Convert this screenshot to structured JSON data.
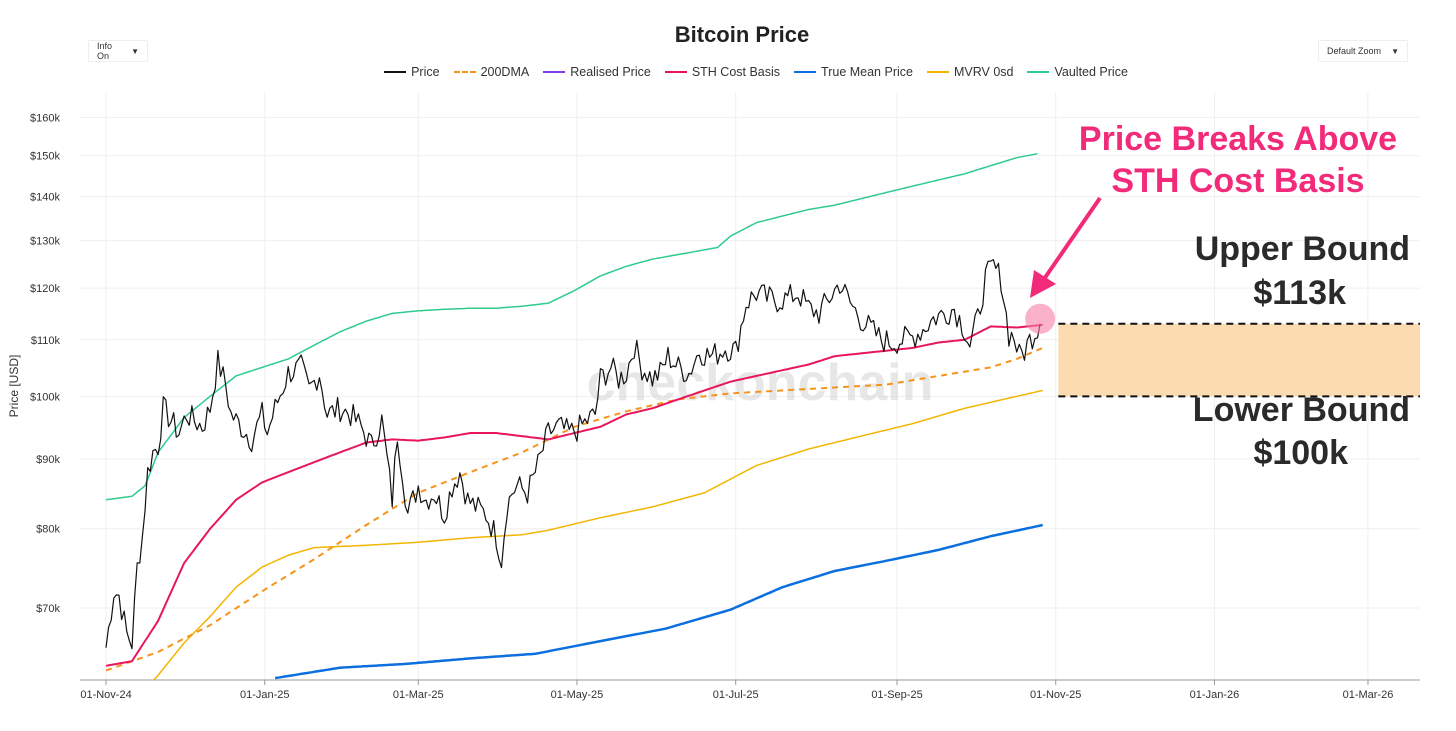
{
  "controls": {
    "info_label": "Info On",
    "zoom_label": "Default Zoom",
    "dropdown_arrow": "▼"
  },
  "chart_data": {
    "type": "line",
    "title": "Bitcoin Price",
    "ylabel": "Price [USD]",
    "xlabel": "",
    "yscale": "log",
    "ylim": [
      62000,
      167000
    ],
    "xlim_days": [
      -10,
      505
    ],
    "x_origin": "2024-11-01",
    "y_ticks": [
      {
        "value": 70000,
        "label": "$70k"
      },
      {
        "value": 80000,
        "label": "$80k"
      },
      {
        "value": 90000,
        "label": "$90k"
      },
      {
        "value": 100000,
        "label": "$100k"
      },
      {
        "value": 110000,
        "label": "$110k"
      },
      {
        "value": 120000,
        "label": "$120k"
      },
      {
        "value": 130000,
        "label": "$130k"
      },
      {
        "value": 140000,
        "label": "$140k"
      },
      {
        "value": 150000,
        "label": "$150k"
      },
      {
        "value": 160000,
        "label": "$160k"
      }
    ],
    "x_ticks": [
      {
        "day": 0,
        "label": "01-Nov-24"
      },
      {
        "day": 61,
        "label": "01-Jan-25"
      },
      {
        "day": 120,
        "label": "01-Mar-25"
      },
      {
        "day": 181,
        "label": "01-May-25"
      },
      {
        "day": 242,
        "label": "01-Jul-25"
      },
      {
        "day": 304,
        "label": "01-Sep-25"
      },
      {
        "day": 365,
        "label": "01-Nov-25"
      },
      {
        "day": 426,
        "label": "01-Jan-26"
      },
      {
        "day": 485,
        "label": "01-Mar-26"
      }
    ],
    "series": [
      {
        "name": "Price",
        "color": "#111111",
        "dash": false,
        "width": 1.2,
        "noise": 1,
        "points": [
          [
            0,
            65500
          ],
          [
            3,
            72000
          ],
          [
            5,
            71500
          ],
          [
            8,
            67000
          ],
          [
            10,
            66000
          ],
          [
            12,
            75000
          ],
          [
            14,
            79000
          ],
          [
            16,
            88000
          ],
          [
            18,
            91000
          ],
          [
            20,
            92000
          ],
          [
            22,
            98000
          ],
          [
            25,
            96000
          ],
          [
            28,
            94000
          ],
          [
            31,
            97000
          ],
          [
            34,
            96000
          ],
          [
            37,
            95000
          ],
          [
            40,
            98000
          ],
          [
            43,
            106000
          ],
          [
            46,
            102000
          ],
          [
            48,
            97000
          ],
          [
            52,
            95000
          ],
          [
            56,
            93000
          ],
          [
            60,
            97000
          ],
          [
            62,
            94000
          ],
          [
            65,
            98000
          ],
          [
            70,
            104000
          ],
          [
            75,
            105000
          ],
          [
            78,
            101000
          ],
          [
            82,
            104000
          ],
          [
            85,
            97000
          ],
          [
            90,
            98000
          ],
          [
            94,
            97000
          ],
          [
            98,
            95000
          ],
          [
            100,
            93500
          ],
          [
            102,
            92000
          ],
          [
            106,
            96000
          ],
          [
            108,
            90000
          ],
          [
            110,
            84000
          ],
          [
            112,
            94000
          ],
          [
            114,
            88000
          ],
          [
            116,
            82000
          ],
          [
            118,
            84000
          ],
          [
            120,
            86000
          ],
          [
            123,
            84000
          ],
          [
            126,
            85000
          ],
          [
            130,
            82000
          ],
          [
            133,
            86000
          ],
          [
            136,
            88000
          ],
          [
            139,
            84000
          ],
          [
            142,
            83000
          ],
          [
            146,
            82000
          ],
          [
            150,
            79000
          ],
          [
            152,
            76000
          ],
          [
            154,
            83000
          ],
          [
            156,
            85000
          ],
          [
            158,
            86000
          ],
          [
            162,
            85000
          ],
          [
            166,
            89000
          ],
          [
            170,
            94000
          ],
          [
            174,
            95000
          ],
          [
            178,
            94000
          ],
          [
            181,
            94500
          ],
          [
            185,
            96000
          ],
          [
            188,
            97000
          ],
          [
            190,
            103000
          ],
          [
            194,
            105000
          ],
          [
            197,
            103000
          ],
          [
            200,
            104000
          ],
          [
            203,
            109000
          ],
          [
            206,
            105000
          ],
          [
            210,
            103000
          ],
          [
            213,
            104000
          ],
          [
            216,
            107000
          ],
          [
            220,
            105000
          ],
          [
            224,
            104000
          ],
          [
            228,
            108000
          ],
          [
            232,
            107000
          ],
          [
            235,
            107500
          ],
          [
            238,
            108500
          ],
          [
            242,
            108000
          ],
          [
            246,
            117000
          ],
          [
            250,
            119000
          ],
          [
            254,
            118000
          ],
          [
            258,
            117500
          ],
          [
            262,
            118000
          ],
          [
            266,
            119000
          ],
          [
            270,
            116000
          ],
          [
            274,
            115000
          ],
          [
            278,
            118000
          ],
          [
            282,
            121000
          ],
          [
            286,
            117000
          ],
          [
            290,
            114000
          ],
          [
            294,
            112000
          ],
          [
            298,
            110000
          ],
          [
            302,
            109500
          ],
          [
            306,
            110000
          ],
          [
            310,
            110500
          ],
          [
            314,
            112000
          ],
          [
            318,
            114000
          ],
          [
            322,
            115000
          ],
          [
            326,
            116000
          ],
          [
            330,
            112000
          ],
          [
            332,
            109000
          ],
          [
            335,
            114000
          ],
          [
            338,
            122000
          ],
          [
            341,
            124500
          ],
          [
            344,
            122000
          ],
          [
            347,
            111000
          ],
          [
            349,
            110500
          ],
          [
            351,
            107000
          ],
          [
            353,
            108000
          ],
          [
            355,
            110000
          ],
          [
            357,
            111500
          ],
          [
            359,
            113000
          ]
        ]
      },
      {
        "name": "200DMA",
        "color": "#f7931a",
        "dash": true,
        "width": 2,
        "points": [
          [
            0,
            63000
          ],
          [
            20,
            65000
          ],
          [
            40,
            68000
          ],
          [
            60,
            72000
          ],
          [
            80,
            76000
          ],
          [
            100,
            80500
          ],
          [
            120,
            85000
          ],
          [
            140,
            88000
          ],
          [
            160,
            91000
          ],
          [
            180,
            95000
          ],
          [
            200,
            97500
          ],
          [
            220,
            99500
          ],
          [
            240,
            100500
          ],
          [
            260,
            101000
          ],
          [
            280,
            101500
          ],
          [
            300,
            102000
          ],
          [
            320,
            103500
          ],
          [
            340,
            105000
          ],
          [
            350,
            106500
          ],
          [
            360,
            108500
          ]
        ]
      },
      {
        "name": "Realised Price",
        "color": "#7b3fe4",
        "dash": false,
        "width": 2,
        "points": []
      },
      {
        "name": "STH Cost Basis",
        "color": "#e8175d",
        "dash": false,
        "width": 2,
        "points": [
          [
            0,
            63500
          ],
          [
            10,
            64000
          ],
          [
            20,
            68500
          ],
          [
            30,
            75500
          ],
          [
            40,
            80000
          ],
          [
            50,
            84000
          ],
          [
            60,
            86500
          ],
          [
            70,
            88000
          ],
          [
            80,
            89500
          ],
          [
            90,
            91000
          ],
          [
            100,
            92500
          ],
          [
            110,
            93000
          ],
          [
            120,
            92800
          ],
          [
            130,
            93300
          ],
          [
            140,
            94000
          ],
          [
            150,
            94000
          ],
          [
            160,
            93500
          ],
          [
            170,
            93000
          ],
          [
            180,
            94000
          ],
          [
            190,
            95000
          ],
          [
            200,
            97000
          ],
          [
            210,
            98000
          ],
          [
            220,
            99500
          ],
          [
            230,
            101000
          ],
          [
            240,
            102500
          ],
          [
            250,
            103500
          ],
          [
            260,
            104500
          ],
          [
            270,
            105500
          ],
          [
            280,
            107000
          ],
          [
            290,
            107500
          ],
          [
            300,
            108000
          ],
          [
            310,
            108500
          ],
          [
            320,
            109500
          ],
          [
            330,
            110000
          ],
          [
            340,
            112500
          ],
          [
            350,
            112300
          ],
          [
            360,
            112800
          ]
        ]
      },
      {
        "name": "True Mean Price",
        "color": "#0b6fe0",
        "dash": false,
        "width": 2.5,
        "points": [
          [
            65,
            62200
          ],
          [
            90,
            63300
          ],
          [
            115,
            63700
          ],
          [
            140,
            64300
          ],
          [
            165,
            64800
          ],
          [
            190,
            66200
          ],
          [
            215,
            67600
          ],
          [
            240,
            69800
          ],
          [
            260,
            72500
          ],
          [
            280,
            74500
          ],
          [
            300,
            75800
          ],
          [
            320,
            77200
          ],
          [
            340,
            79000
          ],
          [
            360,
            80500
          ]
        ]
      },
      {
        "name": "MVRV 0sd",
        "color": "#f2b500",
        "dash": false,
        "width": 1.5,
        "points": [
          [
            15,
            61000
          ],
          [
            20,
            62500
          ],
          [
            30,
            66000
          ],
          [
            40,
            69000
          ],
          [
            50,
            72500
          ],
          [
            60,
            75000
          ],
          [
            70,
            76500
          ],
          [
            80,
            77500
          ],
          [
            100,
            77800
          ],
          [
            120,
            78200
          ],
          [
            140,
            78800
          ],
          [
            160,
            79200
          ],
          [
            170,
            79800
          ],
          [
            190,
            81500
          ],
          [
            210,
            83000
          ],
          [
            230,
            85000
          ],
          [
            250,
            89000
          ],
          [
            270,
            91500
          ],
          [
            290,
            93500
          ],
          [
            310,
            95500
          ],
          [
            330,
            98000
          ],
          [
            350,
            100000
          ],
          [
            360,
            101000
          ]
        ]
      },
      {
        "name": "Vaulted Price",
        "color": "#2ecb8d",
        "dash": false,
        "width": 1.5,
        "points": [
          [
            0,
            84000
          ],
          [
            10,
            84500
          ],
          [
            15,
            86000
          ],
          [
            20,
            91000
          ],
          [
            30,
            96500
          ],
          [
            40,
            100000
          ],
          [
            50,
            103500
          ],
          [
            60,
            105000
          ],
          [
            70,
            106500
          ],
          [
            80,
            109000
          ],
          [
            90,
            111500
          ],
          [
            100,
            113500
          ],
          [
            110,
            115000
          ],
          [
            120,
            115500
          ],
          [
            130,
            115800
          ],
          [
            140,
            116000
          ],
          [
            150,
            116000
          ],
          [
            160,
            116400
          ],
          [
            170,
            117000
          ],
          [
            180,
            119500
          ],
          [
            190,
            122500
          ],
          [
            200,
            124500
          ],
          [
            210,
            126000
          ],
          [
            220,
            127000
          ],
          [
            235,
            128500
          ],
          [
            240,
            131000
          ],
          [
            250,
            134000
          ],
          [
            260,
            135500
          ],
          [
            270,
            137000
          ],
          [
            280,
            138000
          ],
          [
            290,
            139500
          ],
          [
            300,
            141000
          ],
          [
            310,
            142500
          ],
          [
            320,
            144000
          ],
          [
            330,
            145500
          ],
          [
            340,
            147500
          ],
          [
            350,
            149500
          ],
          [
            358,
            150500
          ]
        ]
      }
    ],
    "bounds": {
      "upper": 113000,
      "lower": 100000,
      "start_day": 366
    },
    "watermark": "checkonchain"
  },
  "annotations": {
    "headline_line1": "Price Breaks Above",
    "headline_line2": "STH Cost Basis",
    "upper_label": "Upper Bound",
    "upper_value": "$113k",
    "lower_label": "Lower Bound",
    "lower_value": "$100k"
  }
}
